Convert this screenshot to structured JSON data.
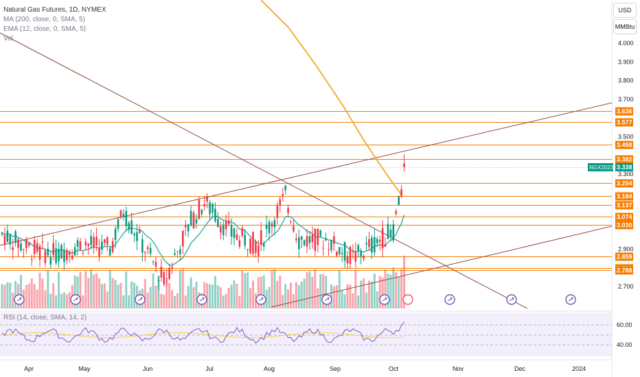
{
  "legend": {
    "symbol": "Natural Gas Futures, 1D, NYMEX",
    "ma": "MA (200, close, 0, SMA, 5)",
    "ema": "EMA (12, close, 0, SMA, 5)",
    "vol": "Vol"
  },
  "rsi_legend": "RSI (14, close, SMA, 14, 2)",
  "currency": "USD",
  "unit": "MMBtu",
  "chart_data": {
    "type": "candlestick",
    "symbol": "Natural Gas Futures",
    "interval": "1D",
    "exchange": "NYMEX",
    "price_axis": {
      "ticks": [
        {
          "v": 4.0,
          "label": "4.000"
        },
        {
          "v": 3.9,
          "label": "3.900"
        },
        {
          "v": 3.8,
          "label": "3.800"
        },
        {
          "v": 3.7,
          "label": "3.700"
        },
        {
          "v": 3.5,
          "label": "3.500"
        },
        {
          "v": 3.3,
          "label": "3.300"
        },
        {
          "v": 2.9,
          "label": "2.900"
        },
        {
          "v": 2.7,
          "label": "2.700"
        }
      ],
      "ylim": [
        2.66,
        4.13
      ]
    },
    "time_axis": [
      "Apr",
      "May",
      "Jun",
      "Jul",
      "Aug",
      "Sep",
      "Oct",
      "Nov",
      "Dec",
      "2024"
    ],
    "current_price": {
      "label": "NGX2023",
      "value": "3.338",
      "color": "#089981"
    },
    "horizontal_levels": [
      {
        "value": 3.636,
        "label": "3.636"
      },
      {
        "value": 3.577,
        "label": "3.577"
      },
      {
        "value": 3.458,
        "label": "3.458"
      },
      {
        "value": 3.382,
        "label": "3.382"
      },
      {
        "value": 3.254,
        "label": "3.254"
      },
      {
        "value": 3.184,
        "label": "3.184"
      },
      {
        "value": 3.137,
        "label": "3.137"
      },
      {
        "value": 3.074,
        "label": "3.074"
      },
      {
        "value": 3.03,
        "label": "3.030"
      },
      {
        "value": 2.859,
        "label": "2.859"
      },
      {
        "value": 2.8,
        "label": "2.800"
      },
      {
        "value": 2.788,
        "label": "2.788"
      }
    ],
    "level_color": "#f57c00",
    "up_color": "#089981",
    "down_color": "#f23645",
    "ma_color": "#f5a623",
    "ema_color": "#26a69a",
    "trendline_color": "#8d4b3c",
    "rsi": {
      "ticks": [
        {
          "v": 60,
          "label": "60.00"
        },
        {
          "v": 40,
          "label": "40.00"
        }
      ],
      "line_color": "#7e57c2",
      "sma_color": "#f5d33b"
    }
  }
}
